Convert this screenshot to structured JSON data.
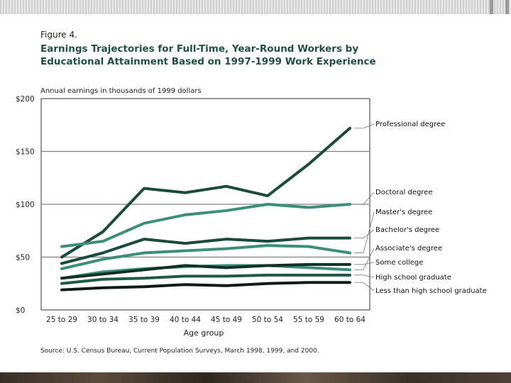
{
  "figure": {
    "label": "Figure 4.",
    "title_line1": "Earnings Trajectories for Full-Time, Year-Round Workers by",
    "title_line2": "Educational Attainment Based on 1997-1999 Work Experience",
    "source": "Source: U.S. Census Bureau, Current Population Surveys, March 1998, 1999, and 2000."
  },
  "chart_data": {
    "type": "line",
    "title": "Earnings Trajectories for Full-Time, Year-Round Workers by Educational Attainment Based on 1997-1999 Work Experience",
    "ylabel": "Annual earnings in thousands of 1999 dollars",
    "xlabel": "Age group",
    "categories": [
      "25 to 29",
      "30 to 34",
      "35 to 39",
      "40 to 44",
      "45 to 49",
      "50 to 54",
      "55 to 59",
      "60 to 64"
    ],
    "ylim": [
      0,
      200
    ],
    "yticks": [
      0,
      50,
      100,
      150,
      200
    ],
    "ytick_labels": [
      "$0",
      "$50",
      "$100",
      "$150",
      "$200"
    ],
    "grid": true,
    "series": [
      {
        "name": "Professional degree",
        "color": "#1a4a3a",
        "values": [
          50,
          74,
          115,
          111,
          117,
          108,
          138,
          172
        ]
      },
      {
        "name": "Doctoral degree",
        "color": "#3a8f7a",
        "values": [
          60,
          65,
          82,
          90,
          94,
          100,
          97,
          100
        ]
      },
      {
        "name": "Master's degree",
        "color": "#3a8f7a",
        "values": [
          39,
          48,
          54,
          56,
          58,
          61,
          60,
          54
        ]
      },
      {
        "name": "Bachelor's degree",
        "color": "#1a4a3a",
        "values": [
          44,
          54,
          67,
          63,
          67,
          65,
          68,
          68
        ]
      },
      {
        "name": "Associate's degree",
        "color": "#3a8f7a",
        "values": [
          30,
          36,
          39,
          41,
          42,
          42,
          40,
          38
        ]
      },
      {
        "name": "Some college",
        "color": "#123026",
        "values": [
          30,
          34,
          38,
          42,
          40,
          42,
          43,
          43
        ]
      },
      {
        "name": "High school graduate",
        "color": "#1f5a48",
        "values": [
          25,
          29,
          30,
          32,
          32,
          33,
          33,
          33
        ]
      },
      {
        "name": "Less than high school graduate",
        "color": "#0f1a16",
        "values": [
          19,
          21,
          22,
          24,
          23,
          25,
          26,
          26
        ]
      }
    ]
  }
}
